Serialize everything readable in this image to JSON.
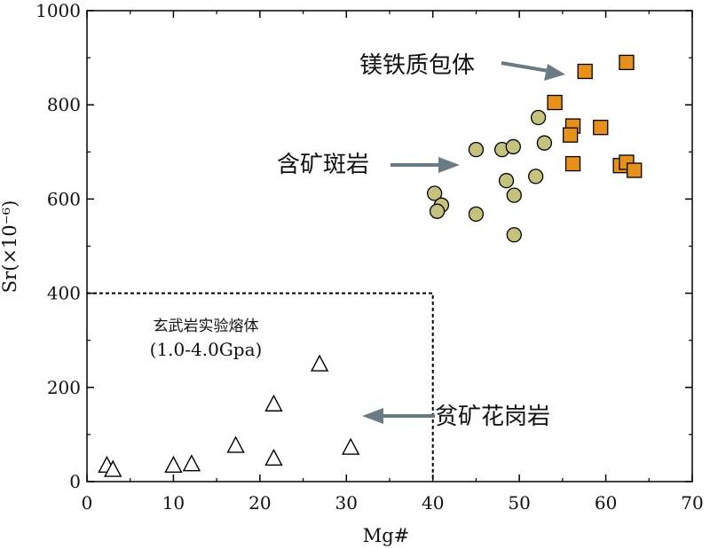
{
  "chart_data": {
    "type": "scatter",
    "xlabel": "Mg#",
    "ylabel": "Sr(×10⁻⁶)",
    "xlim": [
      0,
      70
    ],
    "ylim": [
      0,
      1000
    ],
    "xticks": [
      0,
      10,
      20,
      30,
      40,
      50,
      60,
      70
    ],
    "yticks": [
      0,
      200,
      400,
      600,
      800,
      1000
    ],
    "x_tick_labels": [
      "0",
      "10",
      "20",
      "30",
      "40",
      "50",
      "60",
      "70"
    ],
    "y_tick_labels": [
      "0",
      "200",
      "400",
      "600",
      "800",
      "1000"
    ],
    "series": [
      {
        "name": "镁铁质包体",
        "marker": "square",
        "color": "#E8901C",
        "points": [
          {
            "x": 62.4,
            "y": 890
          },
          {
            "x": 57.6,
            "y": 871
          },
          {
            "x": 54.1,
            "y": 805
          },
          {
            "x": 56.2,
            "y": 755
          },
          {
            "x": 59.4,
            "y": 752
          },
          {
            "x": 55.9,
            "y": 736
          },
          {
            "x": 56.2,
            "y": 675
          },
          {
            "x": 61.7,
            "y": 671
          },
          {
            "x": 62.4,
            "y": 678
          },
          {
            "x": 63.3,
            "y": 661
          }
        ]
      },
      {
        "name": "含矿斑岩",
        "marker": "circle",
        "color": "#C5C27E",
        "points": [
          {
            "x": 52.2,
            "y": 773
          },
          {
            "x": 52.9,
            "y": 719
          },
          {
            "x": 45.0,
            "y": 705
          },
          {
            "x": 48.0,
            "y": 705
          },
          {
            "x": 49.3,
            "y": 711
          },
          {
            "x": 51.9,
            "y": 648
          },
          {
            "x": 48.5,
            "y": 639
          },
          {
            "x": 40.2,
            "y": 612
          },
          {
            "x": 49.4,
            "y": 608
          },
          {
            "x": 41.0,
            "y": 587
          },
          {
            "x": 40.5,
            "y": 574
          },
          {
            "x": 45.0,
            "y": 568
          },
          {
            "x": 49.4,
            "y": 524
          }
        ]
      },
      {
        "name": "贫矿花岗岩",
        "marker": "triangle-open",
        "color": "#000000",
        "points": [
          {
            "x": 26.9,
            "y": 248
          },
          {
            "x": 21.6,
            "y": 163
          },
          {
            "x": 17.2,
            "y": 75
          },
          {
            "x": 30.5,
            "y": 71
          },
          {
            "x": 21.6,
            "y": 48
          },
          {
            "x": 12.1,
            "y": 36
          },
          {
            "x": 10.0,
            "y": 33
          },
          {
            "x": 2.3,
            "y": 33
          },
          {
            "x": 3.0,
            "y": 24
          }
        ]
      }
    ],
    "region": {
      "name": "玄武岩实验熔体",
      "subtitle": "(1.0-4.0Gpa)",
      "x_max": 40,
      "y_max": 400,
      "style": "dashed"
    },
    "annotations": [
      {
        "text": "镁铁质包体",
        "target_series": "镁铁质包体"
      },
      {
        "text": "含矿斑岩",
        "target_series": "含矿斑岩"
      },
      {
        "text": "贫矿花岗岩",
        "target_series": "贫矿花岗岩"
      }
    ],
    "arrow_color": "#6B7B85"
  }
}
